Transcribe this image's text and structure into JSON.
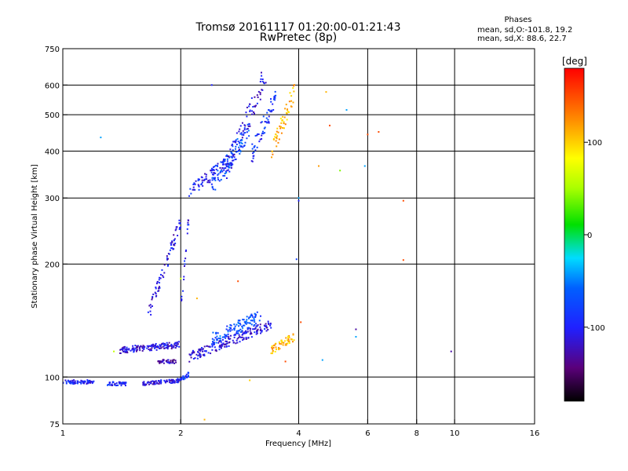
{
  "title": "Tromsø 20161117 01:20:00-01:21:43",
  "subtitle": "RwPretec (8p)",
  "phase_legend": {
    "title": "Phases",
    "o_line": "mean, sd,O:-101.8, 19.2",
    "x_line": "mean, sd,X: 88.6, 22.7"
  },
  "colorbar": {
    "label": "[deg]",
    "ticks": [
      "100",
      "0",
      "-100"
    ]
  },
  "chart_data": {
    "type": "scatter",
    "title": "Tromsø 20161117 01:20:00-01:21:43",
    "subtitle": "RwPretec (8p)",
    "xlabel": "Frequency [MHz]",
    "ylabel": "Stationary phase Virtual Height [km]",
    "xscale": "log",
    "yscale": "log",
    "xlim": [
      1,
      16
    ],
    "ylim": [
      75,
      750
    ],
    "xticks": [
      "1",
      "2",
      "4",
      "6",
      "8",
      "10",
      "16"
    ],
    "yticks": [
      "75",
      "100",
      "200",
      "300",
      "400",
      "500",
      "600",
      "750"
    ],
    "xgrid": [
      2,
      4,
      6,
      8,
      10
    ],
    "ygrid": [
      100,
      200,
      300,
      400,
      500,
      600
    ],
    "color_scale": {
      "min": -180,
      "max": 180,
      "ticks": [
        100,
        0,
        -100
      ]
    },
    "traces": [
      {
        "x": [
          1.0,
          1.2
        ],
        "y": [
          97,
          97
        ],
        "phase": -100,
        "jitter": 0.012
      },
      {
        "x": [
          1.3,
          1.45
        ],
        "y": [
          96,
          96
        ],
        "phase": -100,
        "jitter": 0.012
      },
      {
        "x": [
          1.6,
          2.0
        ],
        "y": [
          96,
          98
        ],
        "phase": -110,
        "jitter": 0.012
      },
      {
        "x": [
          2.0,
          2.1
        ],
        "y": [
          98,
          102
        ],
        "phase": -90,
        "jitter": 0.015
      },
      {
        "x": [
          1.4,
          2.0
        ],
        "y": [
          118,
          122
        ],
        "phase": -110,
        "jitter": 0.02
      },
      {
        "x": [
          1.75,
          1.95
        ],
        "y": [
          110,
          110
        ],
        "phase": -130,
        "jitter": 0.012
      },
      {
        "x": [
          2.1,
          3.4
        ],
        "y": [
          113,
          138
        ],
        "phase": -110,
        "jitter": 0.03
      },
      {
        "x": [
          2.4,
          3.2
        ],
        "y": [
          126,
          145
        ],
        "phase": -70,
        "jitter": 0.04
      },
      {
        "x": [
          3.4,
          3.9
        ],
        "y": [
          118,
          128
        ],
        "phase": 110,
        "jitter": 0.025
      },
      {
        "x": [
          1.65,
          2.0
        ],
        "y": [
          145,
          260
        ],
        "phase": -110,
        "jitter": 0.045
      },
      {
        "x": [
          2.0,
          2.1
        ],
        "y": [
          150,
          270
        ],
        "phase": -100,
        "jitter": 0.04
      },
      {
        "x": [
          2.1,
          2.6
        ],
        "y": [
          310,
          370
        ],
        "phase": -100,
        "jitter": 0.04
      },
      {
        "x": [
          2.4,
          3.0
        ],
        "y": [
          320,
          460
        ],
        "phase": -70,
        "jitter": 0.06
      },
      {
        "x": [
          2.6,
          3.3
        ],
        "y": [
          350,
          640
        ],
        "phase": -110,
        "jitter": 0.08
      },
      {
        "x": [
          3.0,
          3.5
        ],
        "y": [
          380,
          560
        ],
        "phase": -90,
        "jitter": 0.06
      },
      {
        "x": [
          3.4,
          3.9
        ],
        "y": [
          390,
          580
        ],
        "phase": 110,
        "jitter": 0.06
      }
    ],
    "points": [
      {
        "x": 1.25,
        "y": 435,
        "phase": -40
      },
      {
        "x": 2.4,
        "y": 600,
        "phase": -100
      },
      {
        "x": 4.7,
        "y": 575,
        "phase": 110
      },
      {
        "x": 4.8,
        "y": 468,
        "phase": 150
      },
      {
        "x": 5.3,
        "y": 515,
        "phase": -40
      },
      {
        "x": 5.1,
        "y": 355,
        "phase": 40
      },
      {
        "x": 5.9,
        "y": 365,
        "phase": -40
      },
      {
        "x": 6.0,
        "y": 443,
        "phase": 150
      },
      {
        "x": 6.4,
        "y": 450,
        "phase": 150
      },
      {
        "x": 4.5,
        "y": 365,
        "phase": 120
      },
      {
        "x": 7.4,
        "y": 295,
        "phase": 150
      },
      {
        "x": 7.4,
        "y": 205,
        "phase": 150
      },
      {
        "x": 4.0,
        "y": 300,
        "phase": -40
      },
      {
        "x": 4.0,
        "y": 295,
        "phase": -100
      },
      {
        "x": 3.95,
        "y": 206,
        "phase": -80
      },
      {
        "x": 2.8,
        "y": 180,
        "phase": 150
      },
      {
        "x": 2.2,
        "y": 162,
        "phase": 110
      },
      {
        "x": 4.05,
        "y": 140,
        "phase": 150
      },
      {
        "x": 5.6,
        "y": 134,
        "phase": -130
      },
      {
        "x": 5.6,
        "y": 128,
        "phase": -40
      },
      {
        "x": 4.6,
        "y": 111,
        "phase": -40
      },
      {
        "x": 9.8,
        "y": 117,
        "phase": -130
      },
      {
        "x": 3.7,
        "y": 110,
        "phase": 150
      },
      {
        "x": 3.0,
        "y": 98,
        "phase": 100
      },
      {
        "x": 2.3,
        "y": 77,
        "phase": 110
      },
      {
        "x": 1.35,
        "y": 117,
        "phase": 60
      },
      {
        "x": 2.0,
        "y": 183,
        "phase": 60
      }
    ]
  }
}
